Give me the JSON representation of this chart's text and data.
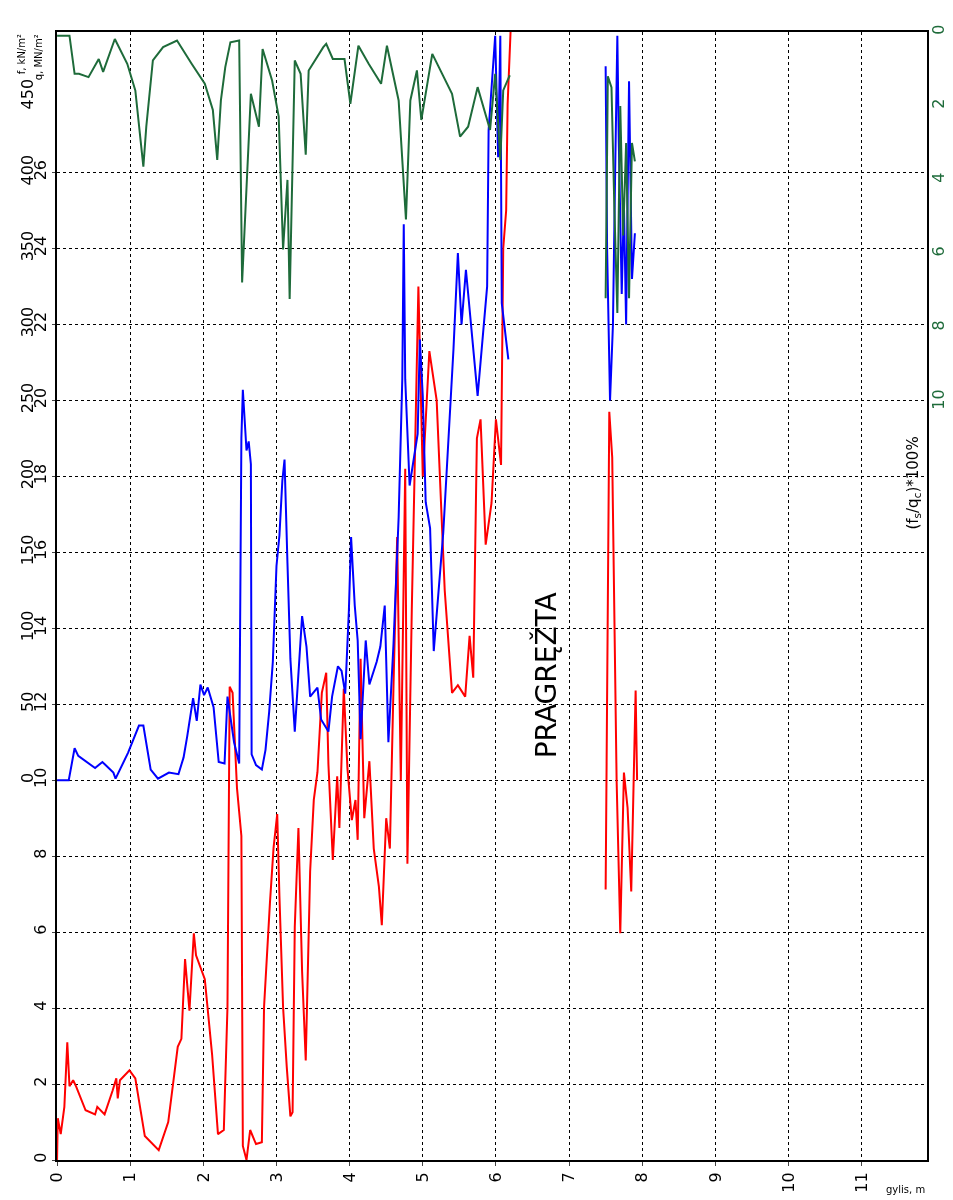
{
  "chart_data": {
    "type": "line",
    "xlabel": "gylis, m",
    "ylabel": "q, MN/m²",
    "y2label": "f, kN/m²",
    "y3label": "(f$_{s}$/q$_{c}$)*100%",
    "annotations": [
      "PRAGRĘŽTA"
    ],
    "xlim": [
      0,
      11.9
    ],
    "xticks": [
      0,
      1,
      2,
      3,
      4,
      5,
      6,
      7,
      8,
      9,
      10,
      11
    ],
    "ylim": [
      0,
      29.7
    ],
    "yticks": [
      0,
      2,
      4,
      6,
      8,
      10,
      12,
      14,
      16,
      18,
      20,
      22,
      24,
      26
    ],
    "y2lim": [
      -250,
      492.5
    ],
    "y2ticks": [
      0,
      50,
      100,
      150,
      200,
      250,
      300,
      350,
      400,
      450
    ],
    "y3lim": [
      30.5,
      0
    ],
    "y3ticks": [
      0,
      2,
      4,
      6,
      8,
      10
    ],
    "grid": true,
    "line_style": "solid",
    "series": [
      {
        "color": "#ff0000",
        "axis": "y",
        "x": [
          0,
          0.01,
          0.05,
          0.1,
          0.14,
          0.17,
          0.22,
          0.26,
          0.39,
          0.52,
          0.55,
          0.65,
          0.76,
          0.81,
          0.83,
          0.86,
          0.99,
          1.07,
          1.2,
          1.39,
          1.52,
          1.65,
          1.7,
          1.75,
          1.81,
          1.87,
          1.9,
          2.02,
          2.12,
          2.2,
          2.28,
          2.33,
          2.36,
          2.4,
          2.46,
          2.52,
          2.54,
          2.59,
          2.64,
          2.72,
          2.8,
          2.83,
          2.91,
          2.96,
          3.01,
          3.04,
          3.09,
          3.14,
          3.19,
          3.22,
          3.25,
          3.3,
          3.35,
          3.4,
          3.46,
          3.51,
          3.56,
          3.62,
          3.68,
          3.71,
          3.77,
          3.83,
          3.86,
          3.92,
          3.97,
          4.03,
          4.08,
          4.11,
          4.15,
          4.2,
          4.27,
          4.33,
          4.4,
          4.44,
          4.5,
          4.55,
          4.6,
          4.65,
          4.7,
          4.76,
          4.79,
          4.85,
          4.94,
          5.0,
          5.09,
          5.19,
          5.3,
          5.4,
          5.48,
          5.58,
          5.64,
          5.69,
          5.74,
          5.79,
          5.86,
          5.94,
          6.0,
          6.07,
          6.1,
          6.14,
          6.16,
          6.2,
          7.0,
          7.5,
          7.55,
          7.59,
          7.65,
          7.7,
          7.75,
          7.8,
          7.85,
          7.91,
          7.93
        ],
        "values": [
          0,
          1.1,
          0.68,
          1.4,
          3.1,
          1.94,
          2.1,
          1.94,
          1.31,
          1.2,
          1.4,
          1.2,
          1.83,
          2.15,
          1.62,
          2.1,
          2.36,
          2.15,
          0.63,
          0.26,
          1.0,
          2.98,
          3.19,
          5.29,
          3.93,
          5.97,
          5.39,
          4.76,
          2.77,
          0.68,
          0.79,
          4.03,
          12.46,
          12.3,
          9.79,
          8.53,
          0.37,
          0,
          0.79,
          0.42,
          0.47,
          4.03,
          6.75,
          8.22,
          9.11,
          6.96,
          4.03,
          2.46,
          1.15,
          1.26,
          6.13,
          8.74,
          4.97,
          2.62,
          7.59,
          9.48,
          10.21,
          12.3,
          12.83,
          10.42,
          7.9,
          10.1,
          8.74,
          12.41,
          10.31,
          8.95,
          9.48,
          8.43,
          13.2,
          9.0,
          10.5,
          8.2,
          7.2,
          6.18,
          9.0,
          8.2,
          12.5,
          16.4,
          10.0,
          18.2,
          7.8,
          14.5,
          23.0,
          18.0,
          21.3,
          20.0,
          15.0,
          12.3,
          12.5,
          12.2,
          13.8,
          12.7,
          19.0,
          19.5,
          16.2,
          17.3,
          19.5,
          18.3,
          24.0,
          25.0,
          27.8,
          29.7,
          null,
          7.12,
          19.7,
          18.5,
          10.0,
          5.97,
          10.2,
          9.27,
          7.07,
          12.36,
          10.0
        ]
      },
      {
        "color": "#0000ff",
        "axis": "y2",
        "x": [
          0,
          0.16,
          0.24,
          0.29,
          0.52,
          0.62,
          0.77,
          0.8,
          0.97,
          1.12,
          1.18,
          1.28,
          1.38,
          1.53,
          1.66,
          1.73,
          1.78,
          1.86,
          1.91,
          1.96,
          2.01,
          2.06,
          2.14,
          2.21,
          2.29,
          2.33,
          2.42,
          2.49,
          2.52,
          2.54,
          2.59,
          2.62,
          2.65,
          2.66,
          2.72,
          2.8,
          2.85,
          2.9,
          2.95,
          3.0,
          3.04,
          3.08,
          3.11,
          3.15,
          3.19,
          3.25,
          3.35,
          3.41,
          3.46,
          3.56,
          3.61,
          3.71,
          3.76,
          3.84,
          3.89,
          3.94,
          3.99,
          4.02,
          4.07,
          4.11,
          4.15,
          4.22,
          4.27,
          4.37,
          4.42,
          4.48,
          4.53,
          4.6,
          4.67,
          4.72,
          4.74,
          4.76,
          4.82,
          4.93,
          4.96,
          5.0,
          5.04,
          5.1,
          5.15,
          5.28,
          5.42,
          5.48,
          5.53,
          5.59,
          5.75,
          5.88,
          5.9,
          5.99,
          6.03,
          6.06,
          6.08,
          6.17,
          7.0,
          7.5,
          7.52,
          7.56,
          7.6,
          7.63,
          7.66,
          7.68,
          7.72,
          7.75,
          7.78,
          7.82,
          7.86,
          7.9
        ],
        "values": [
          0,
          0,
          21,
          16,
          8,
          12,
          5,
          1,
          18,
          36,
          36,
          7,
          1,
          5,
          4,
          15,
          29,
          54,
          39,
          63,
          56,
          61,
          48,
          12,
          11,
          55,
          25,
          11,
          225,
          257,
          217,
          223,
          208,
          17,
          10,
          7,
          20,
          45,
          78,
          141,
          161,
          197,
          211,
          143,
          80,
          32,
          108,
          88,
          55,
          61,
          40,
          32,
          55,
          75,
          72,
          57,
          112,
          160,
          115,
          92,
          27,
          92,
          63,
          78,
          88,
          115,
          25,
          90,
          173,
          264,
          366,
          264,
          194,
          228,
          290,
          253,
          183,
          166,
          85,
          163,
          284,
          347,
          300,
          336,
          253,
          325,
          428,
          490,
          410,
          490,
          314,
          277,
          null,
          470,
          350,
          250,
          300,
          400,
          490,
          420,
          320,
          380,
          300,
          460,
          330,
          360
        ]
      },
      {
        "color": "#1e6b3a",
        "axis": "y3",
        "x": [
          0,
          0.17,
          0.24,
          0.3,
          0.43,
          0.57,
          0.63,
          0.79,
          0.96,
          1.07,
          1.18,
          1.22,
          1.31,
          1.45,
          1.64,
          1.84,
          2.02,
          2.13,
          2.19,
          2.24,
          2.3,
          2.37,
          2.49,
          2.53,
          2.65,
          2.76,
          2.81,
          2.94,
          3.03,
          3.09,
          3.15,
          3.18,
          3.25,
          3.33,
          3.4,
          3.44,
          3.64,
          3.68,
          3.77,
          3.93,
          4.01,
          4.12,
          4.26,
          4.43,
          4.51,
          4.67,
          4.77,
          4.83,
          4.92,
          4.98,
          5.13,
          5.4,
          5.51,
          5.62,
          5.75,
          5.92,
          5.99,
          6.06,
          6.1,
          6.19,
          7.0,
          7.5,
          7.53,
          7.58,
          7.62,
          7.66,
          7.7,
          7.74,
          7.78,
          7.82,
          7.86,
          7.9
        ],
        "values": [
          0.1,
          0.1,
          1.13,
          1.13,
          1.22,
          0.73,
          1.08,
          0.19,
          0.86,
          1.58,
          3.64,
          2.56,
          0.77,
          0.41,
          0.23,
          0.86,
          1.4,
          2.11,
          3.46,
          1.85,
          0.95,
          0.28,
          0.23,
          6.77,
          1.67,
          2.56,
          0.46,
          1.31,
          2.29,
          5.88,
          4.0,
          7.22,
          0.77,
          1.13,
          3.32,
          1.04,
          0.41,
          0.32,
          0.73,
          0.73,
          1.94,
          0.37,
          0.86,
          1.4,
          0.37,
          1.85,
          5.07,
          1.85,
          1.04,
          2.38,
          0.59,
          1.67,
          2.83,
          2.56,
          1.49,
          2.65,
          1.13,
          3.46,
          1.58,
          1.17,
          null,
          7.2,
          1.2,
          1.5,
          4.8,
          7.6,
          2.0,
          5.5,
          3.0,
          7.2,
          3.0,
          3.5
        ]
      }
    ]
  }
}
